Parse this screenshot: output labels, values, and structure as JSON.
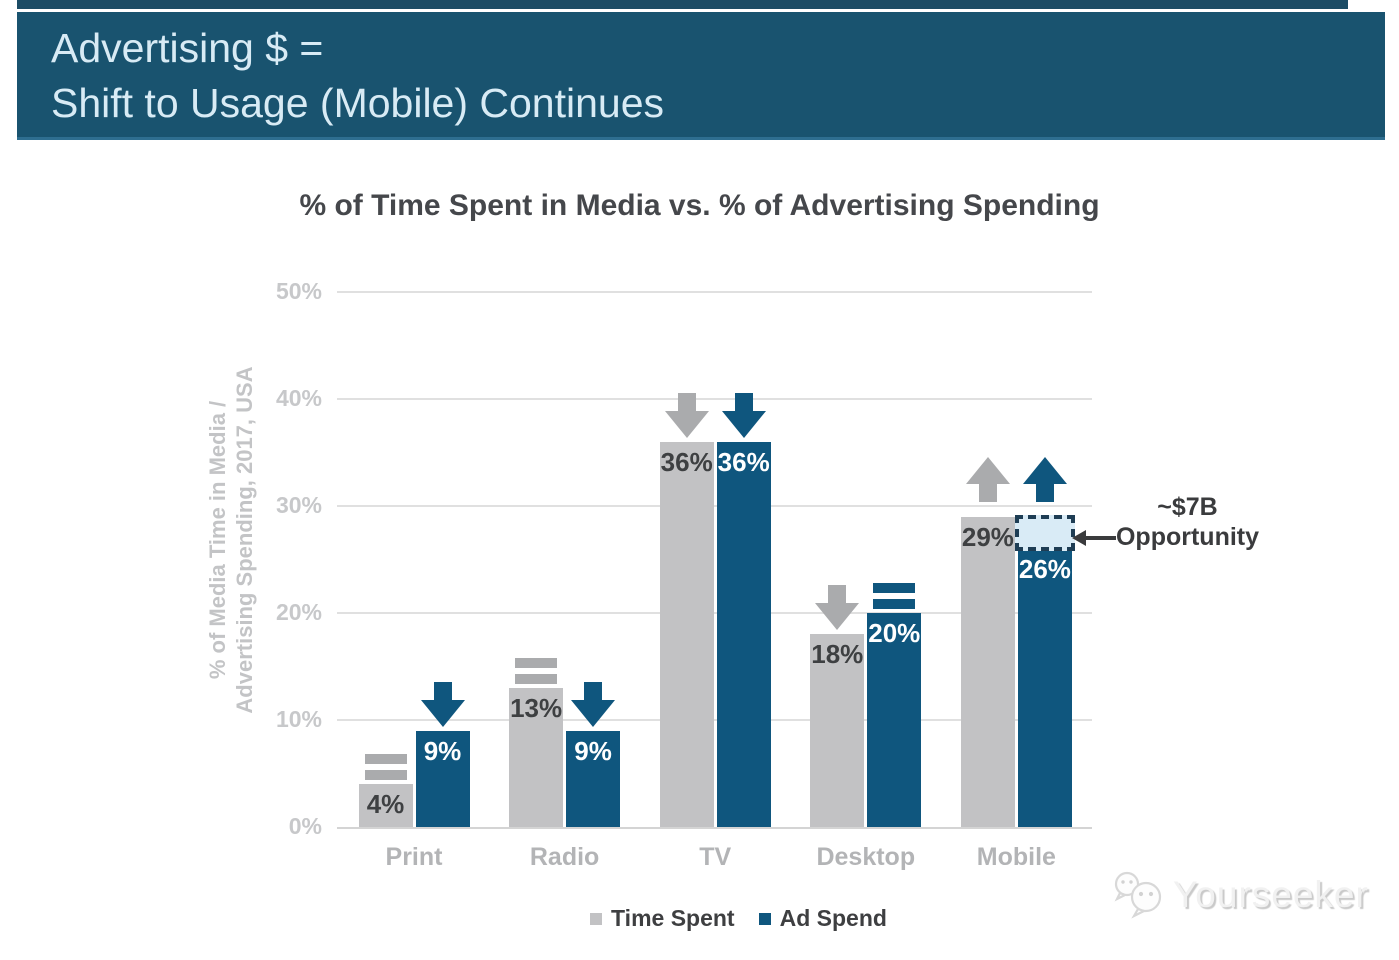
{
  "slide_header": {
    "line1": "Advertising $ =",
    "line2": "Shift to Usage (Mobile) Continues"
  },
  "chart_title": "% of Time Spent in Media vs. % of Advertising Spending",
  "y_axis_label": {
    "line1": "% of Media Time in Media /",
    "line2": "Advertising Spending, 2017, USA"
  },
  "annotation": {
    "line1": "~$7B",
    "line2": "Opportunity"
  },
  "legend": {
    "items": [
      {
        "label": "Time Spent",
        "color": "#C2C2C4"
      },
      {
        "label": "Ad Spend",
        "color": "#0F567E"
      }
    ]
  },
  "watermark": {
    "text": "Yourseeker",
    "logo": "chat-bubbles-icon"
  },
  "colors": {
    "header_bg": "#19536F",
    "header_text": "#D8EBF5",
    "bar_gray": "#C2C2C4",
    "bar_blue": "#0F567E",
    "trend_gray": "#AAABAD",
    "trend_blue": "#0F567E",
    "value_label_dark": "#3E4042",
    "value_label_light": "#FFFFFF",
    "axis_tick_text": "#C7C8CA",
    "category_text": "#B3B4B6",
    "gridline": "#E0E0E0",
    "chart_title_text": "#45474B",
    "legend_text": "#3E3F41",
    "annotation_text": "#3A3B3D",
    "opportunity_fill": "#D9EBF6",
    "opportunity_border": "#1E3D54"
  },
  "chart_data": {
    "type": "bar",
    "title": "% of Time Spent in Media vs. % of Advertising Spending",
    "ylabel": "% of Media Time in Media / Advertising Spending, 2017, USA",
    "xlabel": "",
    "categories": [
      "Print",
      "Radio",
      "TV",
      "Desktop",
      "Mobile"
    ],
    "series": [
      {
        "name": "Time Spent",
        "values": [
          4,
          13,
          36,
          18,
          29
        ],
        "trend_icons": [
          "flat",
          "flat",
          "down",
          "down",
          "up"
        ]
      },
      {
        "name": "Ad Spend",
        "values": [
          9,
          9,
          36,
          20,
          26
        ],
        "trend_icons": [
          "down",
          "down",
          "down",
          "flat",
          "up"
        ]
      }
    ],
    "value_labels": [
      [
        "4%",
        "13%",
        "36%",
        "18%",
        "29%"
      ],
      [
        "9%",
        "9%",
        "36%",
        "20%",
        "26%"
      ]
    ],
    "yticks": [
      "0%",
      "10%",
      "20%",
      "30%",
      "40%",
      "50%"
    ],
    "ylim": [
      0,
      50
    ],
    "grid": true,
    "legend_position": "bottom",
    "opportunity_box": {
      "category": "Mobile",
      "series": "Ad Spend",
      "from_value": 26,
      "to_value": 29,
      "label": "~$7B Opportunity"
    }
  }
}
